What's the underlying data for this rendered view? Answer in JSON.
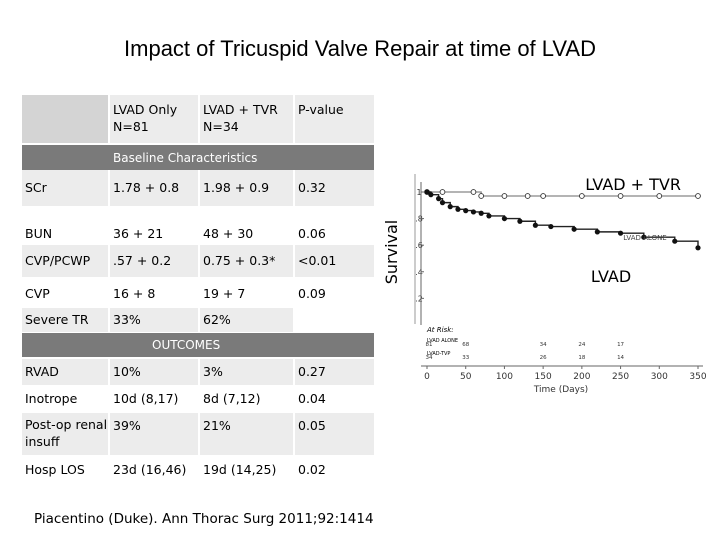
{
  "slide": {
    "title": "Impact of Tricuspid Valve Repair at time of LVAD",
    "citation": "Piacentino (Duke). Ann Thorac Surg 2011;92:1414"
  },
  "table": {
    "header": [
      {
        "line1": "",
        "line2": ""
      },
      {
        "line1": "LVAD Only",
        "line2": "N=81"
      },
      {
        "line1": "LVAD + TVR",
        "line2": "N=34"
      },
      {
        "line1": "P-value",
        "line2": ""
      }
    ],
    "baseline_label": "Baseline Characteristics",
    "baseline_rows": [
      [
        "SCr",
        "1.78 + 0.8",
        "1.98 + 0.9",
        "0.32"
      ],
      [
        "BUN",
        "36 + 21",
        "48 + 30",
        "0.06"
      ],
      [
        "CVP/PCWP",
        ".57 + 0.2",
        "0.75 + 0.3*",
        "<0.01"
      ],
      [
        "CVP",
        "16 + 8",
        "19 + 7",
        "0.09"
      ],
      [
        "Severe TR",
        "33%",
        "62%",
        ""
      ]
    ],
    "outcomes_label": "OUTCOMES",
    "outcome_rows": [
      [
        "RVAD",
        "10%",
        "3%",
        "0.27"
      ],
      [
        "Inotrope",
        "10d (8,17)",
        "8d (7,12)",
        "0.04"
      ],
      [
        "Post-op renal insuff",
        "39%",
        "21%",
        "0.05"
      ],
      [
        "Hosp LOS",
        "23d (16,46)",
        "19d (14,25)",
        "0.02"
      ]
    ]
  },
  "chart_data": {
    "type": "line",
    "ylabel": "Survival",
    "xlabel": "Time (Days)",
    "xlim": [
      0,
      350
    ],
    "ylim": [
      0.15,
      1.0
    ],
    "xticks": [
      "0",
      "50",
      "100",
      "150",
      "200",
      "250",
      "300",
      "350"
    ],
    "yticks": [
      ".2",
      ".4",
      ".6",
      ".8",
      "1"
    ],
    "annotations": {
      "tvr_callout": "LVAD + TVR",
      "lvad_callout": "LVAD",
      "inset_label": "LVAD ALONE"
    },
    "at_risk": {
      "label": "At Risk:",
      "rows": [
        {
          "name": "LVAD ALONE",
          "counts": [
            "81",
            "68",
            "34",
            "24",
            "17"
          ]
        },
        {
          "name": "LVAD-TVP",
          "counts": [
            "34",
            "33",
            "26",
            "18",
            "14"
          ]
        }
      ]
    },
    "series": [
      {
        "name": "LVAD + TVR",
        "x": [
          0,
          20,
          60,
          70,
          100,
          130,
          150,
          200,
          250,
          300,
          350
        ],
        "y": [
          1.0,
          1.0,
          1.0,
          0.97,
          0.97,
          0.97,
          0.97,
          0.97,
          0.97,
          0.97,
          0.97
        ]
      },
      {
        "name": "LVAD ALONE",
        "x": [
          0,
          5,
          15,
          20,
          30,
          40,
          50,
          60,
          70,
          80,
          100,
          120,
          140,
          160,
          190,
          220,
          250,
          280,
          320,
          350
        ],
        "y": [
          1.0,
          0.98,
          0.95,
          0.92,
          0.89,
          0.87,
          0.86,
          0.85,
          0.84,
          0.82,
          0.8,
          0.78,
          0.75,
          0.74,
          0.72,
          0.7,
          0.69,
          0.66,
          0.63,
          0.58
        ]
      }
    ]
  }
}
